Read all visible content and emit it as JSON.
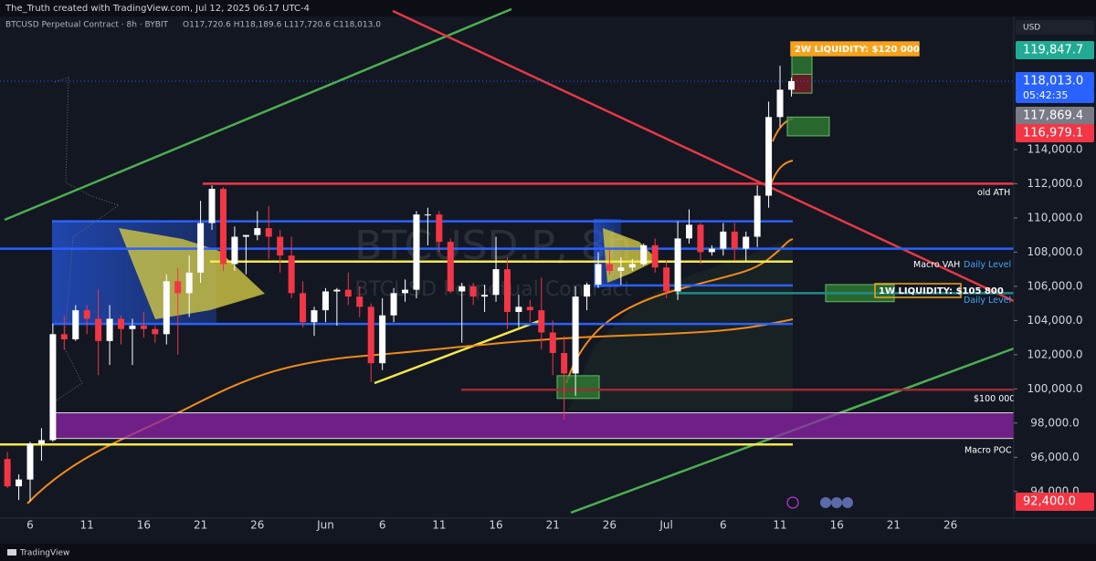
{
  "chart_data": {
    "type": "candlestick",
    "header": "The_Truth created with TradingView.com, Jul 12, 2025 06:17 UTC-4",
    "symbol_line": "BTCUSD Perpetual Contract · 8h · BYBIT",
    "ohlc_line": "O117,720.6 H118,189.6 L117,720.6 C118,013.0",
    "currency": "USD",
    "watermark": "BTCUSD.P, 8h",
    "watermark_sub": "BTCUSD Perpetual Contract",
    "footer": "TradingView",
    "up_color": "#ffffff",
    "down_color": "#f23645",
    "categories": [
      null,
      null,
      "6",
      null,
      null,
      null,
      null,
      "11",
      null,
      null,
      null,
      null,
      "16",
      null,
      null,
      null,
      null,
      "21",
      null,
      null,
      null,
      null,
      "26",
      null,
      null,
      null,
      null,
      null,
      "Jun",
      null,
      null,
      null,
      null,
      "6",
      null,
      null,
      null,
      null,
      "11",
      null,
      null,
      null,
      null,
      "16",
      null,
      null,
      null,
      null,
      "21",
      null,
      null,
      null,
      null,
      "26",
      null,
      null,
      null,
      null,
      "Jul",
      null,
      null,
      null,
      null,
      "6",
      null,
      null,
      null,
      null,
      "11",
      null,
      null,
      null,
      null,
      "16",
      null,
      null,
      null,
      null,
      "21",
      null,
      null,
      null,
      null,
      "26"
    ],
    "open": [
      95900,
      94300,
      94700,
      96800,
      97000,
      103200,
      102900,
      104600,
      104100,
      102800,
      104100,
      103500,
      103700,
      103500,
      103200,
      106300,
      105600,
      106800,
      109700,
      111700,
      107300,
      108900,
      109000,
      109400,
      108900,
      107800,
      105600,
      103900,
      104600,
      105700,
      105800,
      105400,
      104800,
      101500,
      104300,
      105600,
      105800,
      110200,
      110200,
      108600,
      105700,
      106000,
      105400,
      105500,
      107000,
      104500,
      104800,
      104600,
      103300,
      102100,
      100900,
      105400,
      106100,
      107300,
      106900,
      107100,
      107300,
      108400,
      107100,
      105700,
      108800,
      109600,
      108000,
      108200,
      109200,
      108200,
      108900,
      111300,
      115900,
      117500,
      null,
      null,
      null,
      null,
      null,
      null,
      null,
      null,
      null,
      null,
      null,
      null,
      null,
      null
    ],
    "high": [
      96300,
      95000,
      96900,
      97700,
      103800,
      104300,
      104900,
      104900,
      105800,
      104900,
      104300,
      104100,
      104500,
      103700,
      106700,
      107100,
      107800,
      111000,
      111900,
      111800,
      109500,
      109000,
      110400,
      110700,
      109300,
      108900,
      106300,
      104800,
      105900,
      105900,
      106800,
      106000,
      105000,
      105300,
      105900,
      106400,
      110400,
      110600,
      110400,
      108800,
      106200,
      106200,
      106100,
      108900,
      107700,
      105500,
      105200,
      106500,
      104000,
      103100,
      106000,
      106200,
      108000,
      108200,
      107700,
      107600,
      108500,
      108800,
      107500,
      109800,
      110500,
      109700,
      108400,
      109700,
      109700,
      109200,
      111900,
      116800,
      118900,
      118200,
      null,
      null,
      null,
      null,
      null,
      null,
      null,
      null,
      null,
      null,
      null,
      null,
      null,
      null
    ],
    "low": [
      94200,
      93500,
      93400,
      95800,
      96900,
      102300,
      102800,
      103200,
      100800,
      101400,
      102600,
      101400,
      103000,
      102700,
      102600,
      102000,
      104200,
      106200,
      109300,
      106900,
      106900,
      106700,
      108700,
      107600,
      106800,
      105300,
      103600,
      103100,
      103900,
      103700,
      104900,
      104200,
      100400,
      101100,
      103900,
      105100,
      105300,
      108400,
      108000,
      105600,
      102700,
      104900,
      104500,
      105100,
      103500,
      103600,
      103900,
      102300,
      100800,
      98200,
      99600,
      104600,
      105900,
      106700,
      106100,
      106900,
      107200,
      106800,
      105300,
      105200,
      108500,
      107300,
      107800,
      107800,
      107500,
      107500,
      108300,
      110600,
      115300,
      117100,
      null,
      null,
      null,
      null,
      null,
      null,
      null,
      null,
      null,
      null,
      null,
      null,
      null,
      null
    ],
    "close": [
      94300,
      94700,
      96800,
      97000,
      103200,
      102900,
      104600,
      104100,
      102800,
      104100,
      103500,
      103700,
      103500,
      103200,
      106300,
      105600,
      106800,
      109700,
      111700,
      107300,
      108900,
      109000,
      109400,
      108900,
      107800,
      105600,
      103900,
      104600,
      105700,
      105800,
      105400,
      104800,
      101500,
      104300,
      105600,
      105800,
      110200,
      110200,
      108600,
      105700,
      106000,
      105400,
      105500,
      107000,
      104500,
      104800,
      104600,
      103300,
      102100,
      100900,
      105400,
      106100,
      107300,
      106900,
      107100,
      107300,
      108400,
      107100,
      105700,
      108800,
      109600,
      108000,
      108200,
      109200,
      108200,
      108900,
      111300,
      115900,
      117500,
      118000,
      null,
      null,
      null,
      null,
      null,
      null,
      null,
      null,
      null,
      null,
      null,
      null,
      null,
      null
    ],
    "ylim": [
      92600,
      121680
    ],
    "yticks": [
      {
        "value": 94000,
        "label": "94,000.0"
      },
      {
        "value": 96000,
        "label": "96,000.0"
      },
      {
        "value": 98000,
        "label": "98,000.0"
      },
      {
        "value": 100000,
        "label": "100,000.0"
      },
      {
        "value": 102000,
        "label": "102,000.0"
      },
      {
        "value": 104000,
        "label": "104,000.0"
      },
      {
        "value": 106000,
        "label": "106,000.0"
      },
      {
        "value": 108000,
        "label": "108,000.0"
      },
      {
        "value": 110000,
        "label": "110,000.0"
      },
      {
        "value": 112000,
        "label": "112,000.0"
      },
      {
        "value": 114000,
        "label": "114,000.0"
      }
    ],
    "price_labels": [
      {
        "label": "119,847.7",
        "color": "#22ab94"
      },
      {
        "label": "118,013.0",
        "color": "#2962ff"
      },
      {
        "label": "05:42:35",
        "color": "#2962ff"
      },
      {
        "label": "117,869.4",
        "color": "#787b86"
      },
      {
        "label": "116,979.1",
        "color": "#f23645"
      },
      {
        "label": "92,400.0",
        "color": "#f23645"
      }
    ],
    "levels": [
      {
        "labels": [
          "old ATH"
        ],
        "value": 112000,
        "color": "#f23645"
      },
      {
        "labels": [
          "Macro VAH",
          "Daily Level"
        ],
        "value": 108200,
        "color": "#2962ff"
      },
      {
        "labels": [
          "Daily Level"
        ],
        "value": 105600,
        "color": "#1e8a8a"
      },
      {
        "labels": [
          "$100 000"
        ],
        "value": 99950,
        "color": "#9c2a33"
      },
      {
        "labels": [
          "Macro POC"
        ],
        "value": 96750,
        "color": "#f5e94a"
      }
    ],
    "lines": [
      {
        "value": 109800,
        "color": "#2962ff"
      },
      {
        "value": 107450,
        "color": "#f5e94a"
      },
      {
        "value": 106050,
        "color": "#2962ff"
      },
      {
        "value": 103800,
        "color": "#2962ff"
      }
    ],
    "zones": [
      {
        "from": 97100,
        "to": 98600,
        "color": "#8e24aa"
      },
      {
        "from": 118400,
        "to": 120000,
        "color": "#2e7d32"
      },
      {
        "from": 117300,
        "to": 118400,
        "color": "#7b1e26"
      },
      {
        "from": 114800,
        "to": 115900,
        "color": "#2e7d32"
      },
      {
        "from": 105100,
        "to": 106100,
        "color": "#2e7d32"
      },
      {
        "from": 99440,
        "to": 100770,
        "color": "#2e7d32"
      }
    ],
    "tags": [
      {
        "label": "2W LIQUIDITY: $120 000",
        "color": "#f7a21b"
      },
      {
        "label": "1W LIQUIDITY: $105 800",
        "color": "#f7a21b"
      }
    ]
  }
}
